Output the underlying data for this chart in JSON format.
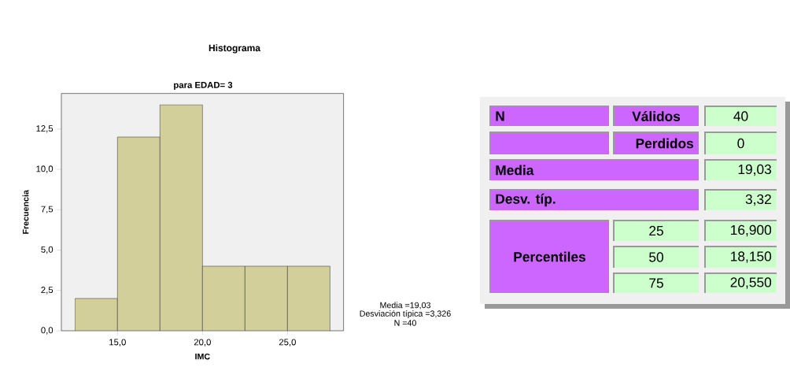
{
  "chart_data": [
    {
      "type": "histogram",
      "title": "Histograma",
      "subtitle": "para EDAD= 3",
      "xlabel": "IMC",
      "ylabel": "Frecuencia",
      "bins": [
        12.5,
        15,
        17.5,
        20,
        22.5,
        25,
        27.5
      ],
      "values": [
        2,
        12,
        14,
        4,
        4,
        4
      ],
      "color": "#d3cf9b",
      "xlim": [
        11.7,
        28.3
      ],
      "ylim": [
        0,
        14.7
      ],
      "xticks": [
        {
          "value": 15,
          "label": "15,0"
        },
        {
          "value": 20,
          "label": "20,0"
        },
        {
          "value": 25,
          "label": "25,0"
        }
      ],
      "yticks": [
        {
          "value": 0,
          "label": "0,0"
        },
        {
          "value": 2.5,
          "label": "2,5"
        },
        {
          "value": 5,
          "label": "5,0"
        },
        {
          "value": 7.5,
          "label": "7,5"
        },
        {
          "value": 10,
          "label": "10,0"
        },
        {
          "value": 12.5,
          "label": "12,5"
        }
      ],
      "annotations": [
        "Media =19,03",
        "Desviación típica =3,326",
        "N =40"
      ]
    },
    {
      "type": "other",
      "annotations": [
        "N",
        "Válidos",
        "40",
        "Perdidos",
        "0",
        "Media",
        "19,03",
        "Desv. típ.",
        "3,32",
        "Percentiles",
        "25",
        "16,900",
        "50",
        "18,150",
        "75",
        "20,550"
      ]
    }
  ]
}
